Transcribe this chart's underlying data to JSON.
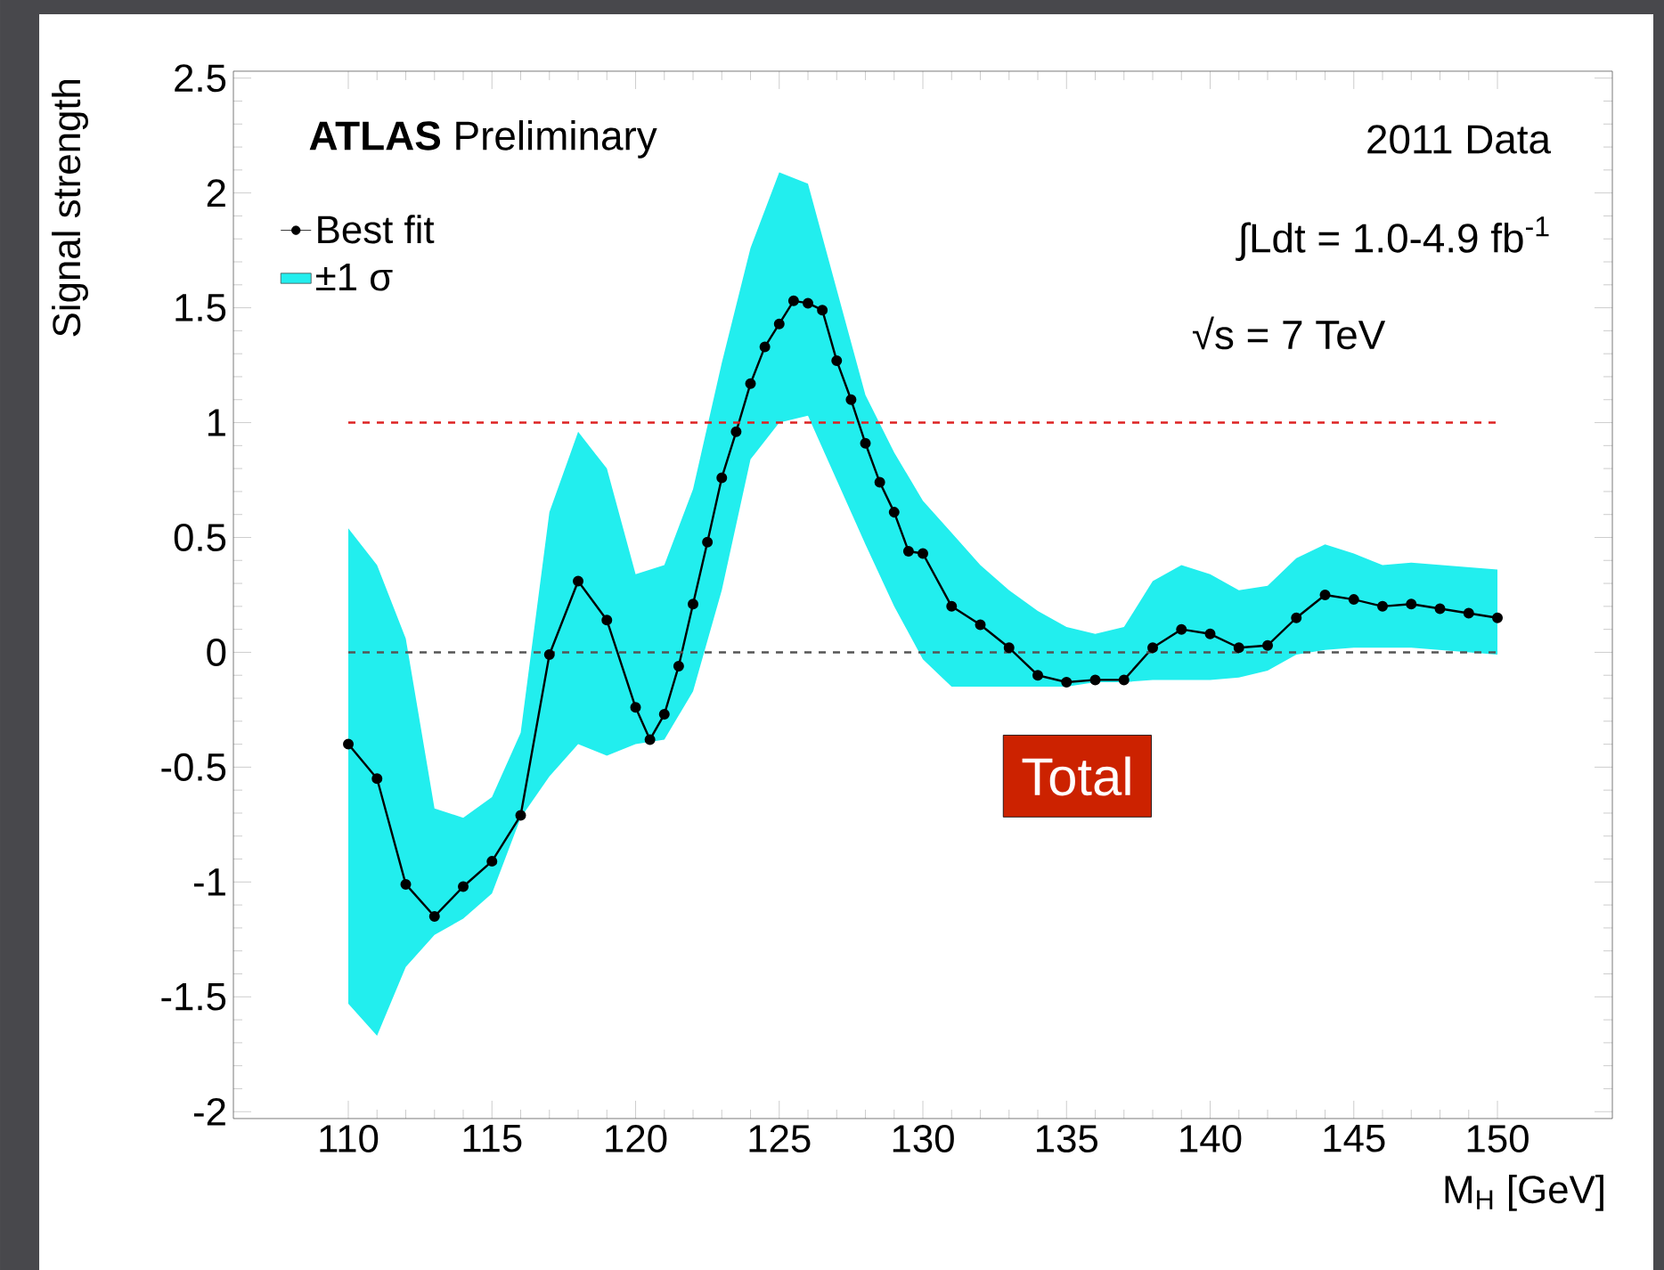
{
  "chart_data": {
    "type": "line",
    "xlabel": "M$_{H}$ [GeV]",
    "ylabel": "Signal strength",
    "xlim": [
      106,
      154
    ],
    "ylim": [
      -2.03,
      2.53
    ],
    "xticks": [
      110,
      115,
      120,
      125,
      130,
      135,
      140,
      145,
      150
    ],
    "yticks": [
      -2,
      -1.5,
      -1,
      -0.5,
      0,
      0.5,
      1,
      1.5,
      2,
      2.5
    ],
    "legend": "top left",
    "marker": "circle",
    "line_style": "solid",
    "series": [
      {
        "name": "Best fit",
        "color": "#000000",
        "x": [
          110,
          111,
          112,
          113,
          114,
          115,
          116,
          117,
          118,
          119,
          120,
          120.5,
          121,
          121.5,
          122,
          122.5,
          123,
          123.5,
          124,
          124.5,
          125,
          125.5,
          126,
          126.5,
          127,
          127.5,
          128,
          128.5,
          129,
          129.5,
          130,
          131,
          132,
          133,
          134,
          135,
          136,
          137,
          138,
          139,
          140,
          141,
          142,
          143,
          144,
          145,
          146,
          147,
          148,
          149,
          150
        ],
        "values": [
          -0.4,
          -0.55,
          -1.01,
          -1.15,
          -1.02,
          -0.91,
          -0.71,
          -0.01,
          0.31,
          0.14,
          -0.24,
          -0.38,
          -0.27,
          -0.06,
          0.21,
          0.48,
          0.76,
          0.96,
          1.17,
          1.33,
          1.43,
          1.53,
          1.52,
          1.49,
          1.27,
          1.1,
          0.91,
          0.74,
          0.61,
          0.44,
          0.43,
          0.2,
          0.12,
          0.02,
          -0.1,
          -0.13,
          -0.12,
          -0.12,
          0.02,
          0.1,
          0.08,
          0.02,
          0.03,
          0.15,
          0.25,
          0.23,
          0.2,
          0.21,
          0.19,
          0.17,
          0.15
        ]
      },
      {
        "name": "±1 σ",
        "type": "area",
        "color": "#22eeee",
        "x": [
          110,
          111,
          112,
          113,
          114,
          115,
          116,
          117,
          118,
          119,
          120,
          121,
          122,
          123,
          124,
          125,
          126,
          127,
          128,
          129,
          130,
          131,
          132,
          133,
          134,
          135,
          136,
          137,
          138,
          139,
          140,
          141,
          142,
          143,
          144,
          145,
          146,
          147,
          148,
          149,
          150
        ],
        "values": [
          null,
          null,
          null,
          null,
          null,
          null,
          null,
          null,
          null,
          null,
          null,
          null,
          null,
          null,
          null,
          null,
          null,
          null,
          null,
          null,
          null,
          null,
          null,
          null,
          null,
          null,
          null,
          null,
          null,
          null,
          null,
          null,
          null,
          null,
          null,
          null,
          null,
          null,
          null,
          null,
          null
        ],
        "upper": [
          0.54,
          0.38,
          0.06,
          -0.68,
          -0.72,
          -0.63,
          -0.35,
          0.61,
          0.96,
          0.8,
          0.34,
          0.38,
          0.71,
          1.26,
          1.76,
          2.09,
          2.04,
          1.58,
          1.12,
          0.87,
          0.66,
          0.52,
          0.38,
          0.27,
          0.18,
          0.11,
          0.08,
          0.11,
          0.31,
          0.38,
          0.34,
          0.27,
          0.29,
          0.41,
          0.47,
          0.43,
          0.38,
          0.39,
          0.38,
          0.37,
          0.36
        ],
        "lower": [
          -1.53,
          -1.67,
          -1.37,
          -1.23,
          -1.16,
          -1.05,
          -0.72,
          -0.54,
          -0.4,
          -0.45,
          -0.4,
          -0.38,
          -0.17,
          0.27,
          0.84,
          1.0,
          1.03,
          0.75,
          0.47,
          0.2,
          -0.03,
          -0.15,
          -0.15,
          -0.15,
          -0.15,
          -0.15,
          -0.13,
          -0.13,
          -0.12,
          -0.12,
          -0.12,
          -0.11,
          -0.08,
          -0.01,
          0.01,
          0.02,
          0.02,
          0.02,
          0.01,
          0.0,
          -0.01
        ]
      }
    ],
    "ref_lines": [
      {
        "axis": "y",
        "value": 1,
        "color": "#dd2222",
        "line_style": "dashed"
      },
      {
        "axis": "y",
        "value": 0,
        "color": "#555555",
        "line_style": "dashed"
      }
    ],
    "annotations": [
      "**ATLAS** Preliminary",
      "2011 Data",
      "∫Ldt = 1.0-4.9 fb$^{-1}$",
      "√s = 7 TeV",
      "Total"
    ]
  }
}
